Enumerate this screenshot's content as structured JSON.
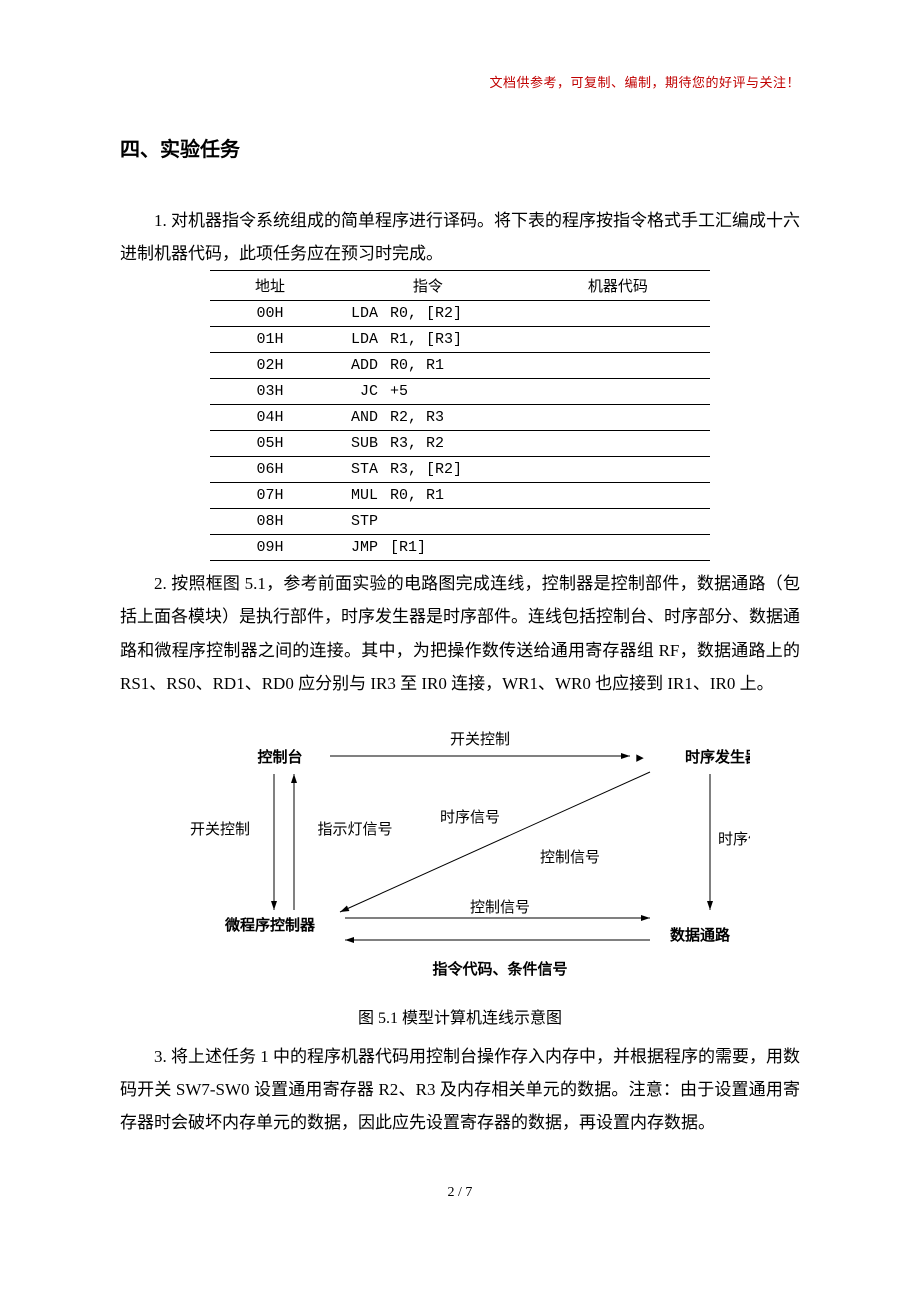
{
  "header_note": "文档供参考，可复制、编制，期待您的好评与关注！",
  "section_title": "四、实验任务",
  "para1": "1. 对机器指令系统组成的简单程序进行译码。将下表的程序按指令格式手工汇编成十六进制机器代码，此项任务应在预习时完成。",
  "table": {
    "head_addr": "地址",
    "head_instr": "指令",
    "head_code": "机器代码",
    "rows": [
      {
        "addr": "00H",
        "op": "LDA",
        "args": "R0, [R2]"
      },
      {
        "addr": "01H",
        "op": "LDA",
        "args": "R1, [R3]"
      },
      {
        "addr": "02H",
        "op": "ADD",
        "args": "R0, R1"
      },
      {
        "addr": "03H",
        "op": "JC",
        "args": "+5"
      },
      {
        "addr": "04H",
        "op": "AND",
        "args": "R2, R3"
      },
      {
        "addr": "05H",
        "op": "SUB",
        "args": "R3, R2"
      },
      {
        "addr": "06H",
        "op": "STA",
        "args": "R3, [R2]"
      },
      {
        "addr": "07H",
        "op": "MUL",
        "args": "R0, R1"
      },
      {
        "addr": "08H",
        "op": "STP",
        "args": ""
      },
      {
        "addr": "09H",
        "op": "JMP",
        "args": " [R1]"
      }
    ]
  },
  "para2": "2. 按照框图 5.1，参考前面实验的电路图完成连线，控制器是控制部件，数据通路（包括上面各模块）是执行部件，时序发生器是时序部件。连线包括控制台、时序部分、数据通路和微程序控制器之间的连接。其中，为把操作数传送给通用寄存器组 RF，数据通路上的 RS1、RS0、RD1、RD0 应分别与 IR3 至 IR0 连接，WR1、WR0 也应接到 IR1、IR0 上。",
  "diagram": {
    "node_console": "控制台",
    "node_timing_gen": "时序发生器",
    "node_micro_ctrl": "微程序控制器",
    "node_datapath": "数据通路",
    "label_switch_ctrl": "开关控制",
    "label_indicator": "指示灯信号",
    "label_timing_sig": "时序信号",
    "label_ctrl_sig": "控制信号",
    "label_bottom": "指令代码、条件信号",
    "colors": {
      "line": "#000000",
      "text": "#000000"
    },
    "font_size": 15
  },
  "caption": "图 5.1  模型计算机连线示意图",
  "para3": "3. 将上述任务 1 中的程序机器代码用控制台操作存入内存中，并根据程序的需要，用数码开关 SW7-SW0 设置通用寄存器 R2、R3 及内存相关单元的数据。注意：由于设置通用寄存器时会破坏内存单元的数据，因此应先设置寄存器的数据，再设置内存数据。",
  "page_number": "2 / 7"
}
